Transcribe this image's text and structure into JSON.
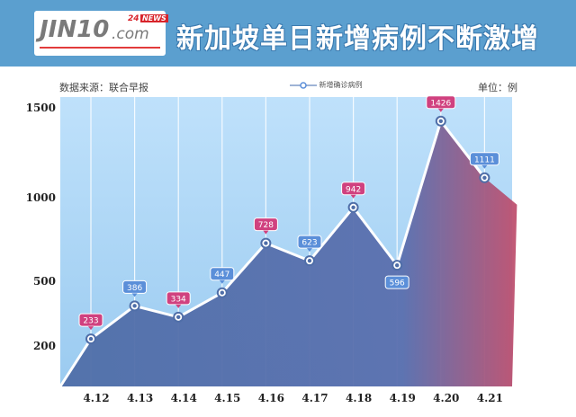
{
  "header": {
    "logo_main": "JIN10",
    "logo_com": ".com",
    "logo_badge": "24",
    "logo_news": "NEWS",
    "title": "新加坡单日新增病例不断激增"
  },
  "source_label": "数据来源：联合早报",
  "legend_label": "新增确诊病例",
  "unit_label": "单位：例",
  "colors": {
    "header_bg": "#5b9fcf",
    "plot_bg": "#a9d4f5",
    "area_fill": "#4f6ea8",
    "line": "#ffffff",
    "label_blue": "#5b8fd9",
    "label_pink": "#d0417f"
  },
  "chart_data": {
    "type": "area",
    "categories": [
      "4.12",
      "4.13",
      "4.14",
      "4.15",
      "4.16",
      "4.17",
      "4.18",
      "4.19",
      "4.20",
      "4.21"
    ],
    "series": [
      {
        "name": "新增确诊病例",
        "values": [
          233,
          386,
          334,
          447,
          728,
          623,
          942,
          596,
          1426,
          1111
        ]
      }
    ],
    "label_colors": [
      "pink",
      "blue",
      "pink",
      "blue",
      "pink",
      "blue",
      "pink",
      "blue",
      "pink",
      "blue"
    ],
    "y_ticks": [
      "1500",
      "1000",
      "500",
      "200"
    ],
    "grid": "vertical"
  }
}
